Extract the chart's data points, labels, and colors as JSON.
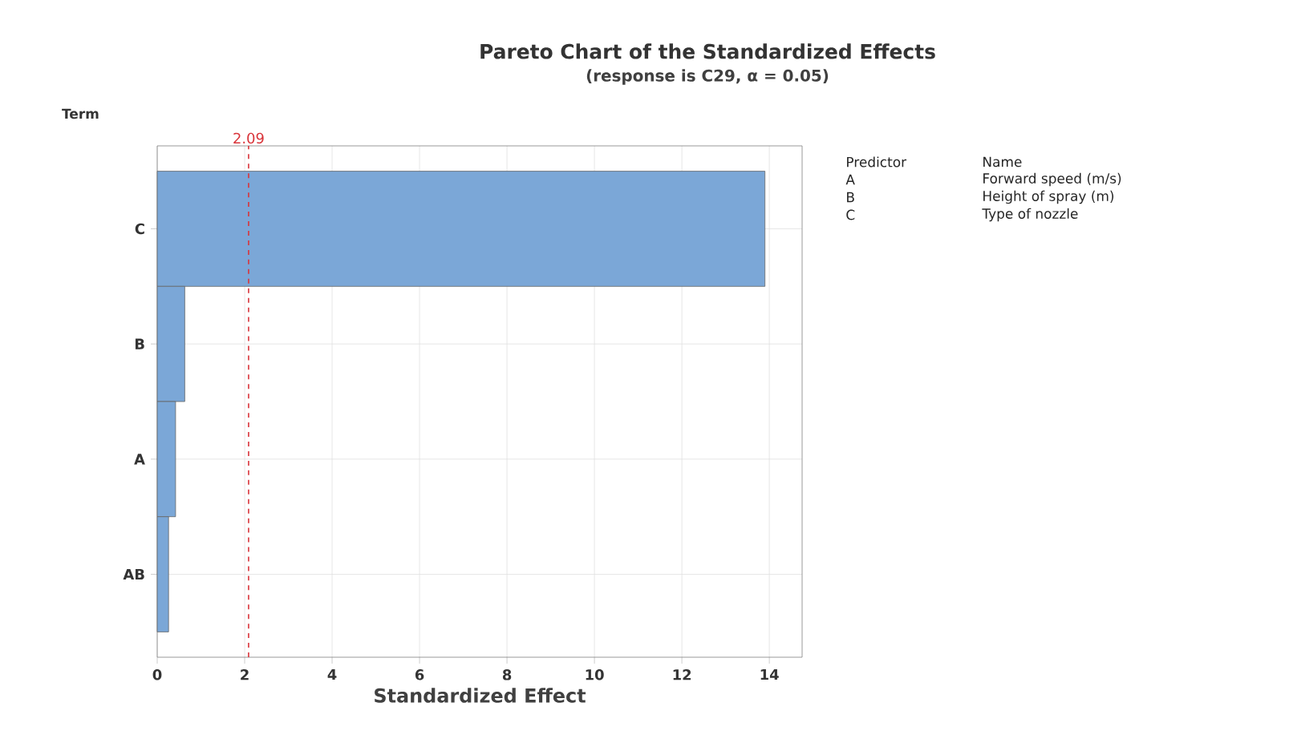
{
  "chart_data": {
    "type": "bar",
    "orientation": "horizontal",
    "title": "Pareto Chart of the Standardized Effects",
    "subtitle": "(response is C29, α = 0.05)",
    "xlabel": "Standardized Effect",
    "ylabel": "Term",
    "categories": [
      "C",
      "B",
      "A",
      "AB"
    ],
    "values": [
      13.9,
      0.63,
      0.42,
      0.26
    ],
    "color": "#7ba7d7",
    "xlim": [
      0,
      14.75
    ],
    "xticks": [
      0,
      2,
      4,
      6,
      8,
      10,
      12,
      14
    ],
    "grid": true,
    "ref_lines": [
      {
        "axis": "x",
        "value": 2.09,
        "label": "2.09",
        "color": "#d9343a",
        "line_style": "dashed"
      }
    ],
    "annotations": [
      "Predictor",
      "Name",
      "A",
      "Forward speed (m/s)",
      "B",
      "Height of spray (m)",
      "C",
      "Type of nozzle"
    ]
  }
}
